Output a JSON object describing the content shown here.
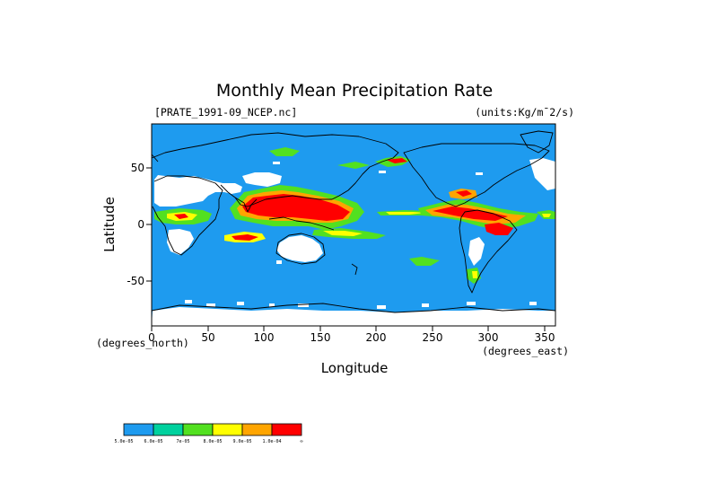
{
  "title": "Monthly Mean Precipitation Rate",
  "file_label": "[PRATE_1991-09_NCEP.nc]",
  "units_label": "(units:Kg/m¯2/s)",
  "x_axis": {
    "label": "Longitude",
    "unit_label": "(degrees_east)",
    "ticks": [
      "0",
      "50",
      "100",
      "150",
      "200",
      "250",
      "300",
      "350"
    ]
  },
  "y_axis": {
    "label": "Latitude",
    "unit_label": "(degrees_north)",
    "ticks": [
      "50",
      "0",
      "-50"
    ]
  },
  "colors": {
    "ocean_base": "#1e9bef",
    "land_dry": "#ffffff",
    "coast": "#000000"
  },
  "colorbar": {
    "colors": [
      "#1e9bef",
      "#00d19e",
      "#1fd8cf",
      "#52e020",
      "#ffff00",
      "#ffa500",
      "#ff0000"
    ],
    "labels": [
      "5.0e-05",
      "6.0e-05",
      "7e-05",
      "8.0e-05",
      "9.0e-05",
      "1.0e-04",
      "∞"
    ]
  }
}
